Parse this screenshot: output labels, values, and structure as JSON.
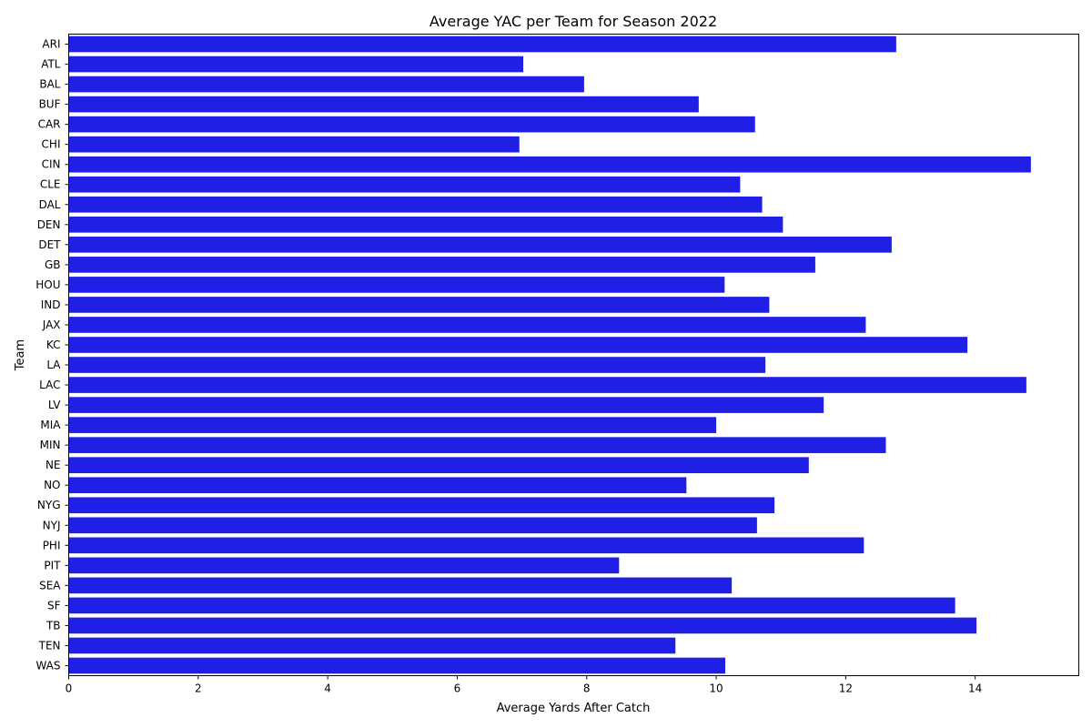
{
  "chart_data": {
    "type": "bar",
    "orientation": "horizontal",
    "title": "Average YAC per Team for Season 2022",
    "xlabel": "Average Yards After Catch",
    "ylabel": "Team",
    "xlim": [
      0,
      15.6
    ],
    "xticks": [
      0,
      2,
      4,
      6,
      8,
      10,
      12,
      14
    ],
    "grid": false,
    "bar_color": "#1f1fe6",
    "categories": [
      "ARI",
      "ATL",
      "BAL",
      "BUF",
      "CAR",
      "CHI",
      "CIN",
      "CLE",
      "DAL",
      "DEN",
      "DET",
      "GB",
      "HOU",
      "IND",
      "JAX",
      "KC",
      "LA",
      "LAC",
      "LV",
      "MIA",
      "MIN",
      "NE",
      "NO",
      "NYG",
      "NYJ",
      "PHI",
      "PIT",
      "SEA",
      "SF",
      "TB",
      "TEN",
      "WAS"
    ],
    "values": [
      12.78,
      7.02,
      7.96,
      9.73,
      10.6,
      6.96,
      14.86,
      10.37,
      10.71,
      11.03,
      12.71,
      11.53,
      10.13,
      10.82,
      12.31,
      13.88,
      10.76,
      14.79,
      11.66,
      10.0,
      12.62,
      11.43,
      9.54,
      10.9,
      10.63,
      12.28,
      8.5,
      10.24,
      13.69,
      14.02,
      9.37,
      10.14
    ]
  }
}
